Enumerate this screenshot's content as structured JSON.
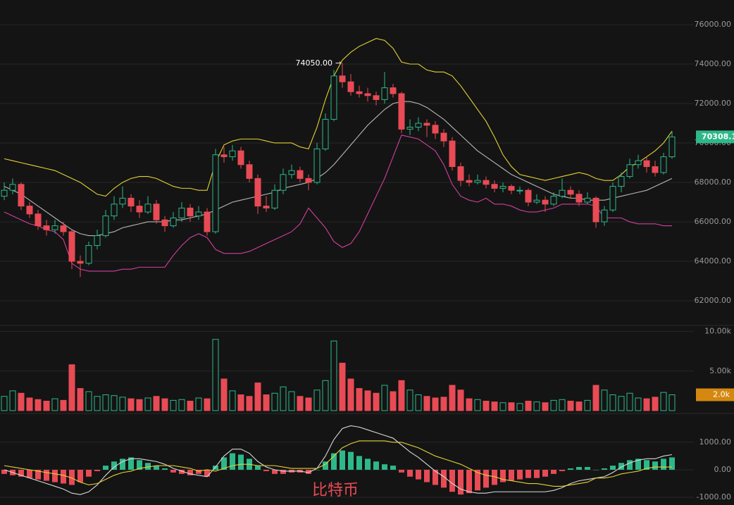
{
  "chart_data": {
    "type": "candlestick",
    "max_label": "74050.00",
    "watermark": "比特币",
    "up_color": "#2eb88a",
    "down_color": "#e84b55",
    "ylim": [
      60820,
      77250
    ],
    "yticks": [
      {
        "value": 62000,
        "label": "62000.00"
      },
      {
        "value": 64000,
        "label": "64000.00"
      },
      {
        "value": 66000,
        "label": "66000.00"
      },
      {
        "value": 68000,
        "label": "68000.00"
      },
      {
        "value": 70000,
        "label": "70000.00"
      },
      {
        "value": 72000,
        "label": "72000.00"
      },
      {
        "value": 74000,
        "label": "74000.00"
      },
      {
        "value": 76000,
        "label": "76000.00"
      }
    ],
    "grid": true,
    "ohlc": [
      [
        67300,
        68000,
        67100,
        67600
      ],
      [
        67600,
        68200,
        67400,
        67900
      ],
      [
        67900,
        68000,
        66600,
        66800
      ],
      [
        66800,
        67000,
        66200,
        66400
      ],
      [
        66400,
        66600,
        65600,
        65800
      ],
      [
        65800,
        66100,
        65300,
        65600
      ],
      [
        65600,
        66100,
        65400,
        65800
      ],
      [
        65800,
        66000,
        65300,
        65500
      ],
      [
        65500,
        65600,
        63600,
        64000
      ],
      [
        64000,
        64300,
        63200,
        63900
      ],
      [
        63900,
        65000,
        63800,
        64800
      ],
      [
        64800,
        65600,
        64600,
        65300
      ],
      [
        65300,
        66600,
        65200,
        66300
      ],
      [
        66300,
        67300,
        66100,
        66900
      ],
      [
        66900,
        67800,
        66700,
        67200
      ],
      [
        67200,
        67400,
        66500,
        66800
      ],
      [
        66800,
        67100,
        66200,
        66500
      ],
      [
        66500,
        67300,
        66400,
        66900
      ],
      [
        66900,
        67100,
        65900,
        66100
      ],
      [
        66100,
        66300,
        65500,
        65800
      ],
      [
        65800,
        66500,
        65700,
        66200
      ],
      [
        66200,
        67000,
        66000,
        66700
      ],
      [
        66700,
        66900,
        66000,
        66300
      ],
      [
        66300,
        66800,
        66100,
        66500
      ],
      [
        66500,
        66700,
        65300,
        65500
      ],
      [
        65500,
        69700,
        65400,
        69400
      ],
      [
        69400,
        69800,
        69000,
        69300
      ],
      [
        69300,
        69900,
        69100,
        69600
      ],
      [
        69600,
        69800,
        68700,
        68900
      ],
      [
        68900,
        69100,
        68000,
        68200
      ],
      [
        68200,
        68400,
        66400,
        66800
      ],
      [
        66800,
        67300,
        66500,
        66700
      ],
      [
        66700,
        67900,
        66600,
        67600
      ],
      [
        67600,
        68700,
        67400,
        68400
      ],
      [
        68400,
        68900,
        68200,
        68600
      ],
      [
        68600,
        68800,
        68000,
        68200
      ],
      [
        68200,
        68400,
        67600,
        68000
      ],
      [
        68000,
        70000,
        67900,
        69700
      ],
      [
        69700,
        71500,
        69600,
        71200
      ],
      [
        71200,
        73700,
        71100,
        73400
      ],
      [
        73400,
        74050,
        72800,
        73100
      ],
      [
        73100,
        73500,
        72400,
        72600
      ],
      [
        72600,
        72900,
        72300,
        72500
      ],
      [
        72500,
        72800,
        72100,
        72400
      ],
      [
        72400,
        72600,
        71900,
        72200
      ],
      [
        72200,
        73600,
        72000,
        72800
      ],
      [
        72800,
        73000,
        72300,
        72500
      ],
      [
        72500,
        72600,
        70500,
        70700
      ],
      [
        70700,
        71200,
        70400,
        70800
      ],
      [
        70800,
        71300,
        70600,
        71000
      ],
      [
        71000,
        71200,
        70300,
        70900
      ],
      [
        70900,
        71100,
        70200,
        70500
      ],
      [
        70500,
        70700,
        69800,
        70100
      ],
      [
        70100,
        70300,
        68600,
        68800
      ],
      [
        68800,
        69000,
        67800,
        68100
      ],
      [
        68100,
        68400,
        67800,
        68000
      ],
      [
        68000,
        68400,
        67900,
        68100
      ],
      [
        68100,
        68300,
        67700,
        67900
      ],
      [
        67900,
        68100,
        67500,
        67700
      ],
      [
        67700,
        68000,
        67500,
        67800
      ],
      [
        67800,
        67900,
        67400,
        67600
      ],
      [
        67600,
        67800,
        67400,
        67600
      ],
      [
        67600,
        67700,
        66800,
        67000
      ],
      [
        67000,
        67400,
        66900,
        67100
      ],
      [
        67100,
        67300,
        66500,
        66900
      ],
      [
        66900,
        67500,
        66800,
        67300
      ],
      [
        67300,
        68200,
        67200,
        67600
      ],
      [
        67600,
        67800,
        67200,
        67400
      ],
      [
        67400,
        67600,
        66800,
        67000
      ],
      [
        67000,
        67500,
        66900,
        67200
      ],
      [
        67200,
        67300,
        65700,
        66000
      ],
      [
        66000,
        66800,
        65800,
        66600
      ],
      [
        66600,
        68000,
        66500,
        67800
      ],
      [
        67800,
        68500,
        67500,
        68300
      ],
      [
        68300,
        69200,
        68200,
        68900
      ],
      [
        68900,
        69400,
        68700,
        69100
      ],
      [
        69100,
        69300,
        68500,
        68800
      ],
      [
        68800,
        69100,
        68300,
        68500
      ],
      [
        68500,
        69500,
        68400,
        69300
      ],
      [
        69300,
        70600,
        69200,
        70308.1
      ]
    ],
    "bands": {
      "upper_color": "#e3d234",
      "middle_color": "#b8b8b8",
      "lower_color": "#d23f9f",
      "upper": [
        69200,
        69100,
        69000,
        68900,
        68800,
        68700,
        68600,
        68400,
        68200,
        68000,
        67700,
        67400,
        67300,
        67700,
        68000,
        68200,
        68300,
        68300,
        68200,
        68000,
        67800,
        67700,
        67700,
        67600,
        67600,
        69000,
        69900,
        70100,
        70200,
        70200,
        70200,
        70100,
        70000,
        70000,
        70000,
        69800,
        69700,
        70800,
        72200,
        73400,
        74200,
        74600,
        74900,
        75100,
        75300,
        75200,
        74800,
        74100,
        74000,
        74000,
        73700,
        73600,
        73600,
        73400,
        72900,
        72300,
        71700,
        71100,
        70300,
        69400,
        68800,
        68400,
        68300,
        68200,
        68100,
        68200,
        68300,
        68400,
        68500,
        68400,
        68200,
        68100,
        68100,
        68400,
        68800,
        69000,
        69300,
        69600,
        70000,
        70600
      ],
      "middle": [
        67800,
        67600,
        67400,
        67100,
        66800,
        66500,
        66200,
        65900,
        65600,
        65400,
        65300,
        65300,
        65400,
        65500,
        65700,
        65800,
        65900,
        66000,
        66000,
        66000,
        66100,
        66100,
        66200,
        66300,
        66400,
        66600,
        66800,
        67000,
        67100,
        67200,
        67300,
        67400,
        67500,
        67700,
        67800,
        67900,
        68000,
        68200,
        68500,
        68900,
        69400,
        69900,
        70400,
        70900,
        71300,
        71700,
        72000,
        72100,
        72100,
        72000,
        71800,
        71500,
        71200,
        70800,
        70400,
        70000,
        69600,
        69300,
        69000,
        68700,
        68400,
        68200,
        68000,
        67800,
        67600,
        67400,
        67300,
        67200,
        67200,
        67100,
        67100,
        67100,
        67200,
        67300,
        67400,
        67500,
        67600,
        67800,
        68000,
        68200
      ],
      "lower": [
        66500,
        66300,
        66100,
        65900,
        65800,
        65600,
        65500,
        65100,
        63900,
        63600,
        63500,
        63500,
        63500,
        63500,
        63600,
        63600,
        63700,
        63700,
        63700,
        63700,
        64300,
        64800,
        65200,
        65400,
        65200,
        64600,
        64400,
        64400,
        64400,
        64500,
        64700,
        64900,
        65100,
        65300,
        65500,
        65900,
        66700,
        66200,
        65700,
        65000,
        64700,
        64900,
        65500,
        66400,
        67300,
        68200,
        69300,
        70400,
        70300,
        70200,
        69900,
        69600,
        68900,
        67900,
        67300,
        67100,
        67000,
        67200,
        66900,
        66900,
        66800,
        66600,
        66500,
        66500,
        66600,
        66700,
        66900,
        66900,
        66900,
        66900,
        66800,
        66200,
        66200,
        66200,
        66000,
        65900,
        65900,
        65900,
        65800,
        65800
      ]
    },
    "volume": {
      "ylim": [
        0,
        10500
      ],
      "yticks": [
        {
          "value": 5000,
          "label": "5.00k"
        },
        {
          "value": 10000,
          "label": "10.00k"
        }
      ],
      "last_value_label": "2.0k",
      "tag_color": "#d4880f",
      "values": [
        1800,
        2500,
        2200,
        1600,
        1400,
        1200,
        1500,
        1300,
        5800,
        2800,
        2400,
        1800,
        2000,
        1900,
        1700,
        1500,
        1400,
        1600,
        1800,
        1500,
        1300,
        1400,
        1200,
        1600,
        1500,
        9000,
        4000,
        2500,
        2000,
        1800,
        3500,
        2000,
        2200,
        3000,
        2400,
        1800,
        1600,
        2600,
        3800,
        8800,
        6000,
        4000,
        2800,
        2500,
        2200,
        3200,
        2400,
        3800,
        2600,
        2000,
        1800,
        1600,
        1700,
        3200,
        2600,
        1500,
        1400,
        1200,
        1100,
        1000,
        1000,
        900,
        1200,
        1100,
        1000,
        1300,
        1400,
        1200,
        1100,
        1300,
        3200,
        2600,
        2000,
        1800,
        2200,
        1600,
        1500,
        1700,
        2300,
        2000
      ]
    },
    "macd": {
      "ylim": [
        -1280,
        1970
      ],
      "yticks": [
        {
          "value": -1000,
          "label": "-1000.00"
        },
        {
          "value": 0,
          "label": "0.00"
        },
        {
          "value": 1000,
          "label": "1000.00"
        }
      ],
      "dif_color": "#d8d8d8",
      "dea_color": "#e3d234",
      "hist": [
        -150,
        -200,
        -250,
        -300,
        -350,
        -400,
        -450,
        -500,
        -550,
        -450,
        -250,
        -50,
        150,
        300,
        400,
        450,
        350,
        250,
        150,
        50,
        -100,
        -150,
        -200,
        -150,
        -250,
        150,
        450,
        600,
        550,
        400,
        150,
        -50,
        -150,
        -150,
        -100,
        -100,
        -150,
        0,
        300,
        600,
        700,
        650,
        500,
        400,
        300,
        200,
        150,
        -100,
        -250,
        -350,
        -450,
        -550,
        -650,
        -800,
        -900,
        -850,
        -750,
        -650,
        -550,
        -450,
        -400,
        -350,
        -300,
        -300,
        -250,
        -150,
        -50,
        50,
        100,
        100,
        0,
        50,
        150,
        250,
        350,
        400,
        350,
        300,
        400,
        450
      ],
      "dif": [
        0,
        -100,
        -200,
        -300,
        -400,
        -500,
        -600,
        -700,
        -850,
        -900,
        -800,
        -550,
        -200,
        100,
        300,
        400,
        400,
        350,
        300,
        200,
        50,
        -50,
        -150,
        -200,
        -250,
        100,
        500,
        750,
        750,
        600,
        300,
        100,
        0,
        -50,
        -50,
        -50,
        -100,
        50,
        500,
        1100,
        1500,
        1600,
        1550,
        1450,
        1350,
        1250,
        1150,
        900,
        650,
        450,
        200,
        -50,
        -250,
        -500,
        -700,
        -800,
        -850,
        -850,
        -800,
        -800,
        -800,
        -800,
        -800,
        -800,
        -800,
        -750,
        -650,
        -500,
        -400,
        -350,
        -300,
        -250,
        -100,
        100,
        250,
        350,
        400,
        400,
        500,
        550
      ],
      "dea": [
        150,
        100,
        50,
        0,
        -50,
        -100,
        -150,
        -200,
        -300,
        -450,
        -550,
        -500,
        -350,
        -200,
        -100,
        -50,
        50,
        100,
        150,
        150,
        150,
        100,
        50,
        -50,
        0,
        -50,
        50,
        150,
        200,
        200,
        150,
        150,
        150,
        100,
        50,
        50,
        50,
        50,
        200,
        500,
        800,
        950,
        1050,
        1050,
        1050,
        1050,
        1000,
        1000,
        900,
        800,
        650,
        500,
        400,
        300,
        200,
        50,
        -100,
        -200,
        -250,
        -350,
        -400,
        -450,
        -500,
        -500,
        -550,
        -600,
        -600,
        -550,
        -500,
        -450,
        -300,
        -300,
        -250,
        -150,
        -100,
        -50,
        50,
        100,
        100,
        100
      ]
    }
  }
}
